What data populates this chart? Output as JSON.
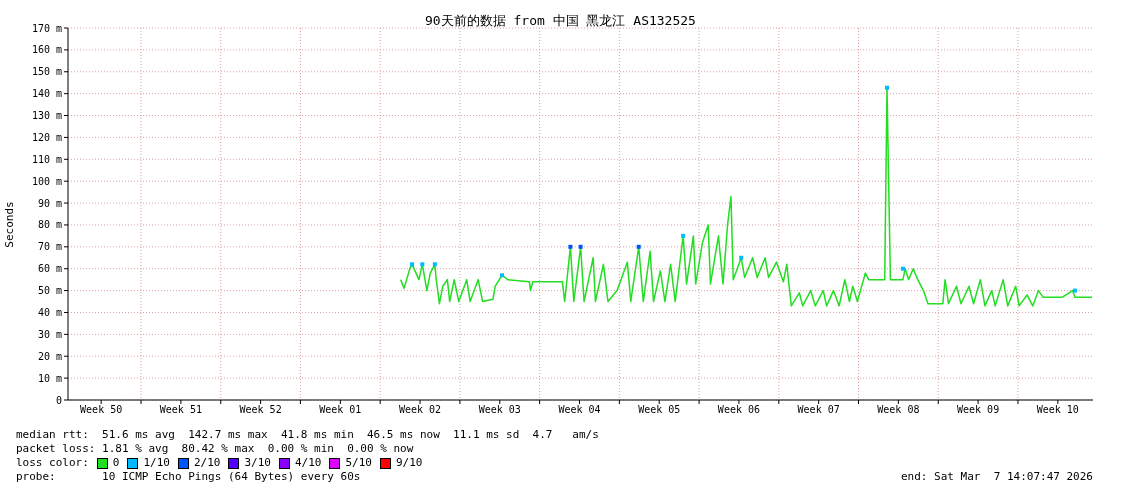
{
  "chart_data": {
    "type": "line",
    "title": "90天前的数据 from 中国 黑龙江 AS132525",
    "ylabel": "Seconds",
    "legend_title": "loss color:",
    "annotations": [
      "median rtt:  51.6 ms avg  142.7 ms max  41.8 ms min  46.5 ms now  11.1 ms sd  4.7   am/s",
      "packet loss: 1.81 % avg  80.42 % max  0.00 % min  0.00 % now",
      "probe:       10 ICMP Echo Pings (64 Bytes) every 60s",
      "end: Sat Mar  7 14:07:47 2026"
    ],
    "x": [
      "2026-01-05T19:12",
      "2026-01-06T02:24",
      "2026-01-06T14:24",
      "2026-01-06T19:12",
      "2026-01-07T09:36",
      "2026-01-07T16:48",
      "2026-01-08T02:24",
      "2026-01-08T09:36",
      "2026-01-08T19:12",
      "2026-01-08T21:36",
      "2026-01-09T04:48",
      "2026-01-09T12:00",
      "2026-01-09T21:36",
      "2026-01-10T02:24",
      "2026-01-10T12:00",
      "2026-01-10T21:36",
      "2026-01-11T14:24",
      "2026-01-11T21:36",
      "2026-01-12T14:24",
      "2026-01-13T00:00",
      "2026-01-13T21:36",
      "2026-01-14T02:24",
      "2026-01-14T16:48",
      "2026-01-15T04:48",
      "2026-01-17T02:24",
      "2026-01-17T04:48",
      "2026-01-17T09:36",
      "2026-01-20T00:00",
      "2026-01-20T04:48",
      "2026-01-20T16:48",
      "2026-01-21T00:00",
      "2026-01-21T14:24",
      "2026-01-21T21:36",
      "2026-01-22T16:48",
      "2026-01-22T21:36",
      "2026-01-23T14:24",
      "2026-01-24T00:00",
      "2026-01-24T19:12",
      "2026-01-25T16:48",
      "2026-01-26T00:00",
      "2026-01-26T16:48",
      "2026-01-27T02:24",
      "2026-01-27T16:48",
      "2026-01-28T00:00",
      "2026-01-28T14:24",
      "2026-01-29T00:00",
      "2026-01-29T12:00",
      "2026-01-29T21:36",
      "2026-01-30T14:24",
      "2026-01-30T21:36",
      "2026-01-31T12:00",
      "2026-01-31T16:48",
      "2026-02-01T07:12",
      "2026-02-01T19:12",
      "2026-02-02T00:00",
      "2026-02-02T16:48",
      "2026-02-03T02:24",
      "2026-02-03T12:00",
      "2026-02-03T19:12",
      "2026-02-04T00:00",
      "2026-02-04T16:48",
      "2026-02-05T00:00",
      "2026-02-05T16:48",
      "2026-02-06T02:24",
      "2026-02-06T19:12",
      "2026-02-07T02:24",
      "2026-02-07T19:12",
      "2026-02-08T09:36",
      "2026-02-08T16:48",
      "2026-02-09T02:24",
      "2026-02-09T19:12",
      "2026-02-10T02:24",
      "2026-02-10T19:12",
      "2026-02-11T04:48",
      "2026-02-11T21:36",
      "2026-02-12T04:48",
      "2026-02-12T19:12",
      "2026-02-13T07:12",
      "2026-02-13T19:12",
      "2026-02-14T04:48",
      "2026-02-14T12:00",
      "2026-02-14T21:36",
      "2026-02-15T14:24",
      "2026-02-15T21:36",
      "2026-02-17T07:12",
      "2026-02-17T12:00",
      "2026-02-17T19:12",
      "2026-02-18T21:36",
      "2026-02-19T02:24",
      "2026-02-19T09:36",
      "2026-02-19T19:12",
      "2026-02-20T04:48",
      "2026-02-20T16:48",
      "2026-02-21T02:24",
      "2026-02-22T09:36",
      "2026-02-22T14:24",
      "2026-02-22T21:36",
      "2026-02-23T14:24",
      "2026-02-24T00:00",
      "2026-02-24T16:48",
      "2026-02-25T02:24",
      "2026-02-25T16:48",
      "2026-02-26T02:24",
      "2026-02-26T16:48",
      "2026-02-27T00:00",
      "2026-02-27T16:48",
      "2026-02-28T02:24",
      "2026-02-28T19:12",
      "2026-03-01T02:24",
      "2026-03-01T19:12",
      "2026-03-02T07:12",
      "2026-03-02T19:12",
      "2026-03-03T04:48",
      "2026-03-04T21:36",
      "2026-03-05T19:12",
      "2026-03-06T00:00",
      "2026-03-07T12:00"
    ],
    "series": [
      {
        "name": "0",
        "color": "#22dd22",
        "values": [
          55,
          51,
          60,
          62,
          55,
          62,
          50,
          58,
          62,
          56,
          44,
          52,
          55,
          45,
          55,
          45,
          55,
          45,
          55,
          45,
          46,
          52,
          57,
          55,
          54,
          50,
          54,
          54,
          45,
          70,
          45,
          70,
          45,
          65,
          45,
          62,
          45,
          50,
          63,
          45,
          70,
          45,
          68,
          45,
          59,
          45,
          62,
          45,
          75,
          53,
          75,
          53,
          72,
          80,
          53,
          75,
          53,
          80,
          93,
          55,
          65,
          56,
          65,
          56,
          65,
          56,
          63,
          54,
          62,
          43,
          49,
          43,
          50,
          43,
          50,
          43,
          50,
          43,
          55,
          45,
          52,
          45,
          58,
          55,
          55,
          142.7,
          55,
          55,
          60,
          55,
          60,
          55,
          50,
          44,
          44,
          55,
          44,
          52,
          44,
          52,
          44,
          55,
          43,
          50,
          43,
          55,
          43,
          52,
          43,
          48,
          43,
          50,
          47,
          47,
          50,
          47,
          47
        ]
      },
      {
        "name": "1/10",
        "color": "#00bbff",
        "type": "scatter",
        "marker": "square",
        "x": [
          "2026-01-06T19:12",
          "2026-01-07T16:48",
          "2026-01-08T19:12",
          "2026-01-14T16:48",
          "2026-01-30T14:24",
          "2026-02-04T16:48",
          "2026-02-17T12:00",
          "2026-02-18T21:36",
          "2026-03-06T00:00"
        ],
        "values": [
          62,
          62,
          62,
          57,
          75,
          65,
          142.7,
          60,
          50
        ]
      },
      {
        "name": "2/10",
        "color": "#0055ff",
        "type": "scatter",
        "marker": "square",
        "x": [
          "2026-01-20T16:48",
          "2026-01-21T14:24",
          "2026-01-26T16:48"
        ],
        "values": [
          70,
          70,
          70
        ]
      },
      {
        "name": "3/10",
        "color": "#5500ff",
        "type": "scatter",
        "x": [
          null
        ],
        "values": [
          null
        ]
      },
      {
        "name": "4/10",
        "color": "#8800ff",
        "type": "scatter",
        "x": [
          null
        ],
        "values": [
          null
        ]
      },
      {
        "name": "5/10",
        "color": "#dd00ff",
        "type": "scatter",
        "x": [
          null
        ],
        "values": [
          null
        ]
      },
      {
        "name": "9/10",
        "color": "#ff0000",
        "type": "scatter",
        "x": [
          null
        ],
        "values": [
          null
        ]
      }
    ],
    "xlim": [
      "2025-12-07T14:07",
      "2026-03-07T14:07"
    ],
    "xticks": [
      {
        "value": "2025-12-10T12:00",
        "label": "Week 50"
      },
      {
        "value": "2025-12-14T00:00",
        "label": null
      },
      {
        "value": "2025-12-17T12:00",
        "label": "Week 51"
      },
      {
        "value": "2025-12-21T00:00",
        "label": null
      },
      {
        "value": "2025-12-24T12:00",
        "label": "Week 52"
      },
      {
        "value": "2025-12-28T00:00",
        "label": null
      },
      {
        "value": "2025-12-31T12:00",
        "label": "Week 01"
      },
      {
        "value": "2026-01-04T00:00",
        "label": null
      },
      {
        "value": "2026-01-07T12:00",
        "label": "Week 02"
      },
      {
        "value": "2026-01-11T00:00",
        "label": null
      },
      {
        "value": "2026-01-14T12:00",
        "label": "Week 03"
      },
      {
        "value": "2026-01-18T00:00",
        "label": null
      },
      {
        "value": "2026-01-21T12:00",
        "label": "Week 04"
      },
      {
        "value": "2026-01-25T00:00",
        "label": null
      },
      {
        "value": "2026-01-28T12:00",
        "label": "Week 05"
      },
      {
        "value": "2026-02-01T00:00",
        "label": null
      },
      {
        "value": "2026-02-04T12:00",
        "label": "Week 06"
      },
      {
        "value": "2026-02-08T00:00",
        "label": null
      },
      {
        "value": "2026-02-11T12:00",
        "label": "Week 07"
      },
      {
        "value": "2026-02-15T00:00",
        "label": null
      },
      {
        "value": "2026-02-18T12:00",
        "label": "Week 08"
      },
      {
        "value": "2026-02-22T00:00",
        "label": null
      },
      {
        "value": "2026-02-25T12:00",
        "label": "Week 09"
      },
      {
        "value": "2026-03-01T00:00",
        "label": null
      },
      {
        "value": "2026-03-04T12:00",
        "label": "Week 10"
      }
    ],
    "ylim": [
      0,
      170
    ],
    "yticks": [
      0,
      {
        "value": 10,
        "label": "10 m"
      },
      {
        "value": 20,
        "label": "20 m"
      },
      {
        "value": 30,
        "label": "30 m"
      },
      {
        "value": 40,
        "label": "40 m"
      },
      {
        "value": 50,
        "label": "50 m"
      },
      {
        "value": 60,
        "label": "60 m"
      },
      {
        "value": 70,
        "label": "70 m"
      },
      {
        "value": 80,
        "label": "80 m"
      },
      {
        "value": 90,
        "label": "90 m"
      },
      {
        "value": 100,
        "label": "100 m"
      },
      {
        "value": 110,
        "label": "110 m"
      },
      {
        "value": 120,
        "label": "120 m"
      },
      {
        "value": 130,
        "label": "130 m"
      },
      {
        "value": 140,
        "label": "140 m"
      },
      {
        "value": 150,
        "label": "150 m"
      },
      {
        "value": 160,
        "label": "160 m"
      },
      {
        "value": 170,
        "label": "170 m"
      }
    ],
    "grid": true,
    "legend": "bottom",
    "marker": "none",
    "line_style": "solid"
  }
}
